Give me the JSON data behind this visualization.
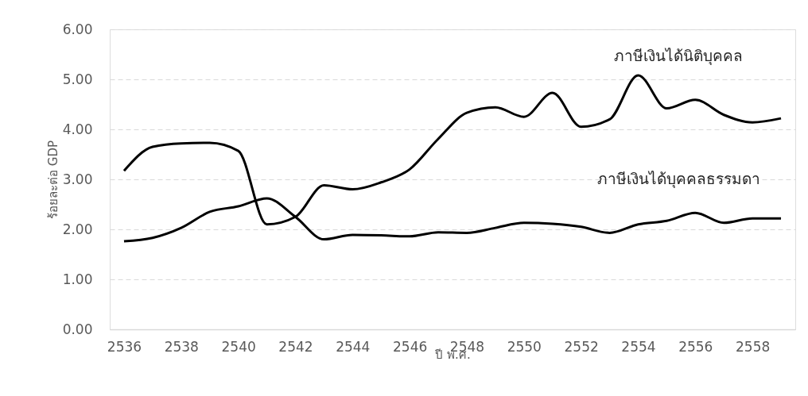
{
  "chart_data": {
    "type": "line",
    "xlabel": "ปี พ.ศ.",
    "ylabel": "ร้อยละต่อ GDP",
    "x": [
      2536,
      2537,
      2538,
      2539,
      2540,
      2541,
      2542,
      2543,
      2544,
      2545,
      2546,
      2547,
      2548,
      2549,
      2550,
      2551,
      2552,
      2553,
      2554,
      2555,
      2556,
      2557,
      2558,
      2559
    ],
    "series": [
      {
        "name": "ภาษีเงินได้นิติบุคคล",
        "color": "#000000",
        "values": [
          3.17,
          3.65,
          3.72,
          3.73,
          3.57,
          2.1,
          2.25,
          2.88,
          2.8,
          2.94,
          3.2,
          3.81,
          4.33,
          4.44,
          4.25,
          4.73,
          4.05,
          4.2,
          5.08,
          4.42,
          4.59,
          4.29,
          4.14,
          4.22
        ]
      },
      {
        "name": "ภาษีเงินได้บุคคลธรรมดา",
        "color": "#000000",
        "values": [
          1.76,
          1.83,
          2.03,
          2.35,
          2.46,
          2.62,
          2.25,
          1.8,
          1.89,
          1.88,
          1.86,
          1.94,
          1.93,
          2.03,
          2.13,
          2.11,
          2.05,
          1.93,
          2.1,
          2.17,
          2.33,
          2.13,
          2.22,
          2.22
        ]
      }
    ],
    "xlim": [
      2535.5,
      2559.5
    ],
    "xticks": [
      2536,
      2538,
      2540,
      2542,
      2544,
      2546,
      2548,
      2550,
      2552,
      2554,
      2556,
      2558
    ],
    "ylim": [
      0,
      6
    ],
    "yticks": [
      {
        "value": 0,
        "label": "0.00"
      },
      {
        "value": 1,
        "label": "1.00"
      },
      {
        "value": 2,
        "label": "2.00"
      },
      {
        "value": 3,
        "label": "3.00"
      },
      {
        "value": 4,
        "label": "4.00"
      },
      {
        "value": 5,
        "label": "5.00"
      },
      {
        "value": 6,
        "label": "6.00"
      }
    ],
    "grid": "y",
    "legend": false,
    "marker": "none",
    "line_style": "solid"
  }
}
